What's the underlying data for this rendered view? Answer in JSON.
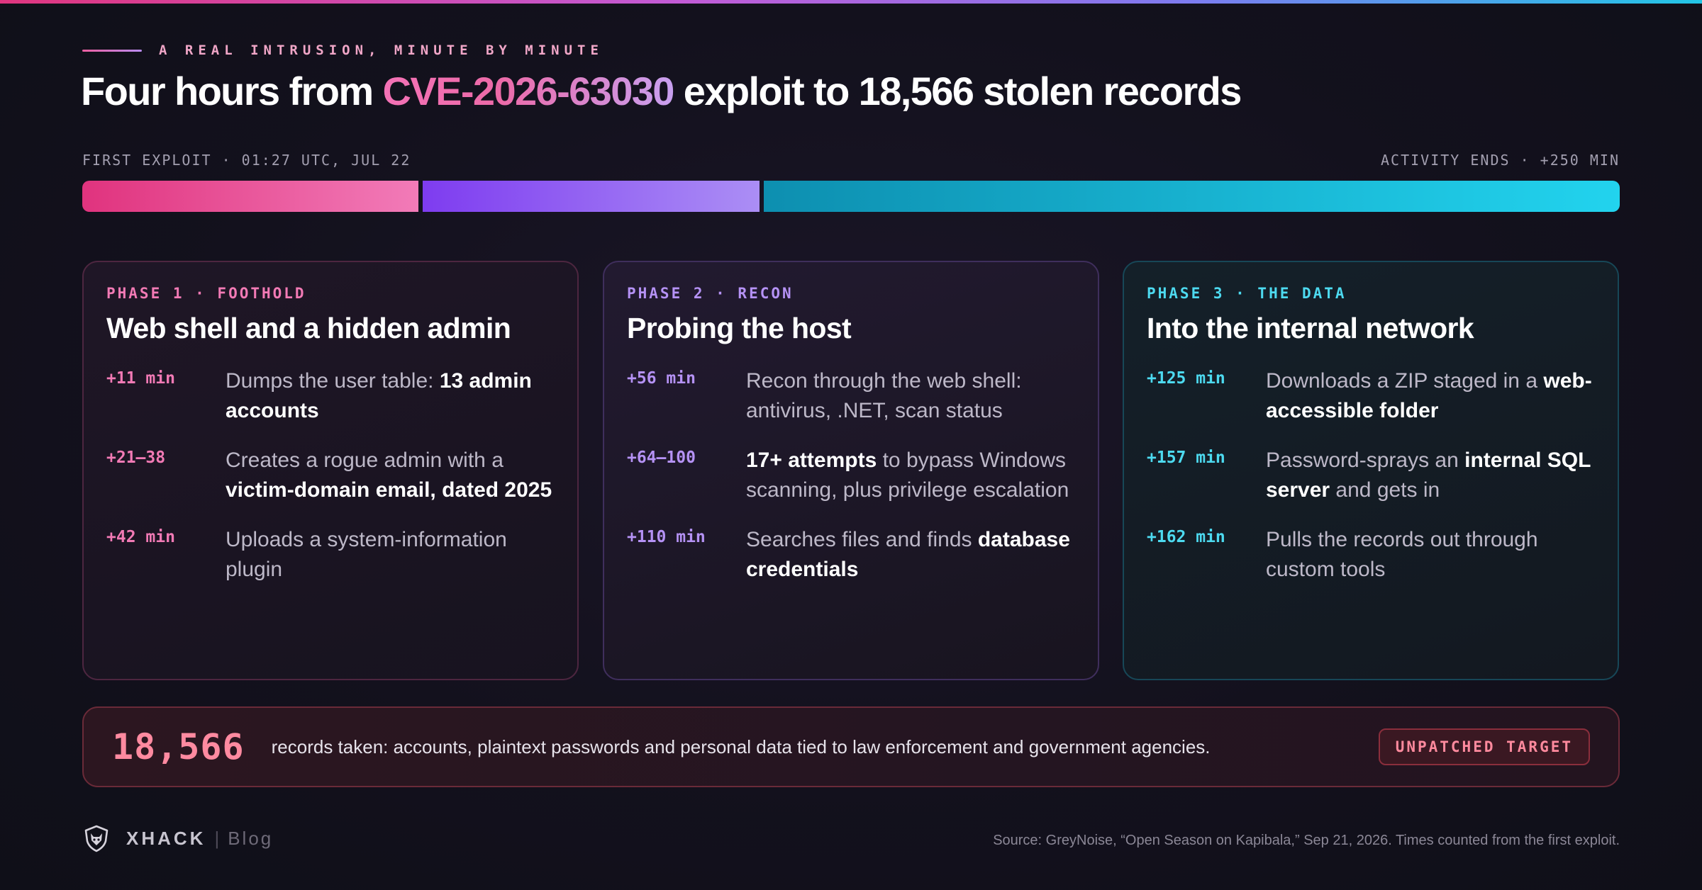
{
  "header": {
    "eyebrow": "A REAL INTRUSION, MINUTE BY MINUTE",
    "headline_prefix": "Four hours from ",
    "headline_cve": "CVE-2026-63030",
    "headline_suffix": " exploit to 18,566 stolen records"
  },
  "timeline": {
    "start_label": "FIRST EXPLOIT · 01:27 UTC, JUL 22",
    "end_label": "ACTIVITY ENDS · +250 MIN",
    "colors": {
      "phase1": "#e0337e",
      "phase2": "#7e3cf0",
      "phase3": "#22d3ee"
    }
  },
  "phases": [
    {
      "label": "PHASE 1 · FOOTHOLD",
      "title": "Web shell and a hidden admin",
      "events": [
        {
          "time": "+11 min",
          "text_a": "Dumps the user table: ",
          "bold": "13 admin accounts",
          "text_b": ""
        },
        {
          "time": "+21–38",
          "text_a": "Creates a rogue admin with a ",
          "bold": "victim-domain email, dated 2025",
          "text_b": ""
        },
        {
          "time": "+42 min",
          "text_a": "Uploads a system-information plugin",
          "bold": "",
          "text_b": ""
        }
      ]
    },
    {
      "label": "PHASE 2 · RECON",
      "title": "Probing the host",
      "events": [
        {
          "time": "+56 min",
          "text_a": "Recon through the web shell: antivirus, .NET, scan status",
          "bold": "",
          "text_b": ""
        },
        {
          "time": "+64–100",
          "text_a": "",
          "bold": "17+ attempts",
          "text_b": " to bypass Windows scanning, plus privilege escalation"
        },
        {
          "time": "+110 min",
          "text_a": "Searches files and finds ",
          "bold": "database credentials",
          "text_b": ""
        }
      ]
    },
    {
      "label": "PHASE 3 · THE DATA",
      "title": "Into the internal network",
      "events": [
        {
          "time": "+125 min",
          "text_a": "Downloads a ZIP staged in a ",
          "bold": "web-accessible folder",
          "text_b": ""
        },
        {
          "time": "+157 min",
          "text_a": "Password-sprays an ",
          "bold": "internal SQL server",
          "text_b": " and gets in"
        },
        {
          "time": "+162 min",
          "text_a": "Pulls the records out through custom tools",
          "bold": "",
          "text_b": ""
        }
      ]
    }
  ],
  "records": {
    "count": "18,566",
    "description": "records taken: accounts, plaintext passwords and personal data tied to law enforcement and government agencies.",
    "badge": "UNPATCHED TARGET"
  },
  "footer": {
    "logo_icon": "fox-shield-icon",
    "brand": "XHACK",
    "separator": "|",
    "section": "Blog",
    "source": "Source: GreyNoise, “Open Season on Kapibala,” Sep 21, 2026. Times counted from the first exploit."
  }
}
